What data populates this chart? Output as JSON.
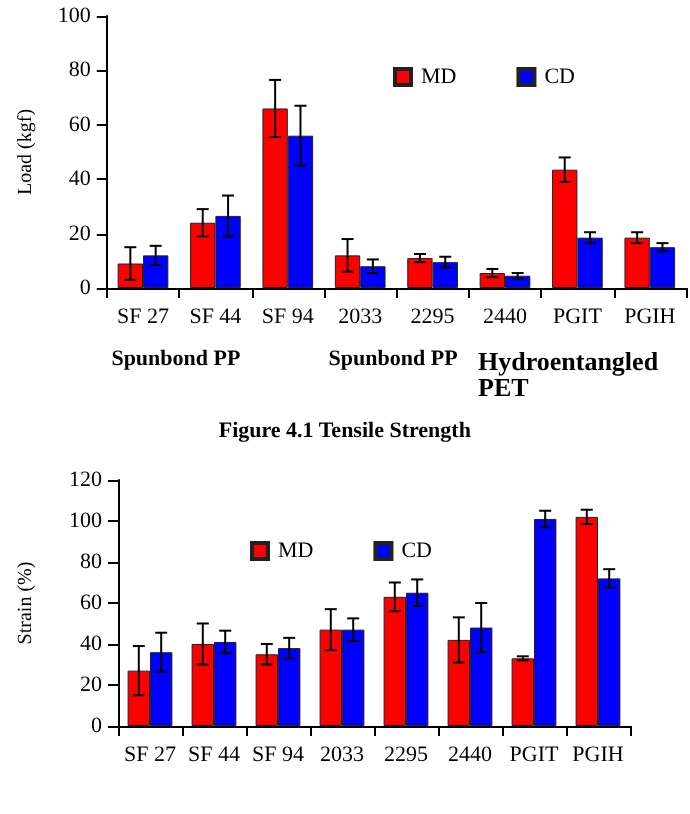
{
  "chart_data": [
    {
      "type": "bar",
      "title": "Figure 4.1 Tensile Strength",
      "ylabel": "Load (kgf)",
      "categories": [
        "SF 27",
        "SF 44",
        "SF 94",
        "2033",
        "2295",
        "2440",
        "PGIT",
        "PGIH"
      ],
      "series": [
        {
          "name": "MD",
          "color": "#ff0000",
          "values": [
            9,
            24,
            66,
            12,
            11,
            5.5,
            43.5,
            18.5
          ],
          "errors": [
            6,
            5,
            10.5,
            6,
            1.5,
            1.5,
            4.5,
            2
          ]
        },
        {
          "name": "CD",
          "color": "#0000ff",
          "values": [
            12,
            26.5,
            56,
            8,
            9.5,
            4.5,
            18.5,
            15
          ],
          "errors": [
            3.5,
            7.5,
            11,
            2.5,
            2,
            1,
            2,
            1.5
          ]
        }
      ],
      "annotations": [
        "Spunbond PP",
        "Spunbond PP",
        "Hydroentangled PET"
      ],
      "ylim": [
        0,
        100
      ],
      "yticks": [
        0,
        20,
        40,
        60,
        80,
        100
      ],
      "grid": false,
      "legend": "top right"
    },
    {
      "type": "bar",
      "ylabel": "Strain (%)",
      "categories": [
        "SF 27",
        "SF 44",
        "SF 94",
        "2033",
        "2295",
        "2440",
        "PGIT",
        "PGIH"
      ],
      "series": [
        {
          "name": "MD",
          "color": "#ff0000",
          "values": [
            27,
            40,
            35,
            47,
            63,
            42,
            33,
            102
          ],
          "errors": [
            12,
            10,
            5,
            10,
            7,
            11,
            1,
            3.5
          ]
        },
        {
          "name": "CD",
          "color": "#0000ff",
          "values": [
            36,
            41,
            38,
            47,
            65,
            48,
            101,
            72
          ],
          "errors": [
            9.5,
            5.5,
            5,
            5.5,
            6.5,
            12,
            4,
            4.5
          ]
        }
      ],
      "ylim": [
        0,
        120
      ],
      "yticks": [
        0,
        20,
        40,
        60,
        80,
        100,
        120
      ],
      "grid": false,
      "legend": "top"
    }
  ]
}
